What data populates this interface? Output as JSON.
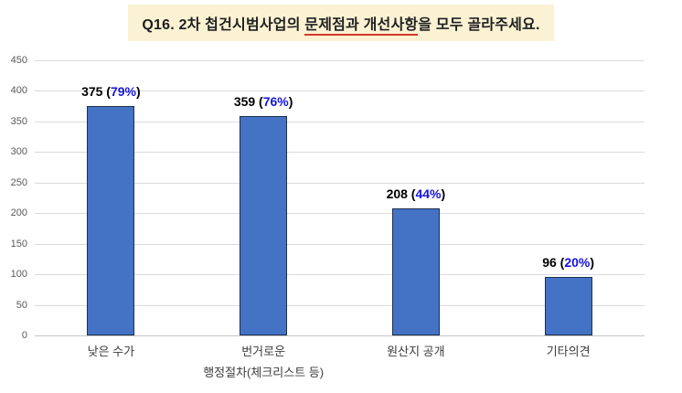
{
  "page": {
    "background": "#ffffff"
  },
  "title": {
    "prefix": "Q16. 2차 첩건시범사업의 ",
    "underlined": "문제점과 개선사항",
    "suffix": "을 모두 골라주세요.",
    "bg_color": "#FBF2D4",
    "text_color": "#1F1F1F",
    "underline_color": "#D13B2A"
  },
  "chart_data": {
    "type": "bar",
    "title": "",
    "categories": [
      "낮은 수가",
      "번거로운",
      "원산지 공개",
      "기타의견"
    ],
    "category_sublabels": [
      "",
      "행정절차(체크리스트 등)",
      "",
      ""
    ],
    "values": [
      375,
      359,
      208,
      96
    ],
    "percents": [
      "79%",
      "76%",
      "44%",
      "20%"
    ],
    "label_format": {
      "open": " (",
      "close": ")"
    },
    "xlabel": "",
    "ylabel": "",
    "ylim": [
      0,
      450
    ],
    "yticks": [
      450,
      400,
      350,
      300,
      250,
      200,
      150,
      100,
      50,
      0
    ],
    "grid": true,
    "legend_position": "none",
    "colors": {
      "bar_fill": "#4472C4",
      "bar_border": "#1E3050",
      "gridline": "#DADADA",
      "axis_line": "#C4C4C4",
      "ytick_text": "#595959",
      "xtick_text": "#3D3D3D",
      "value_text": "#000000",
      "percent_text": "#1414E0"
    }
  }
}
